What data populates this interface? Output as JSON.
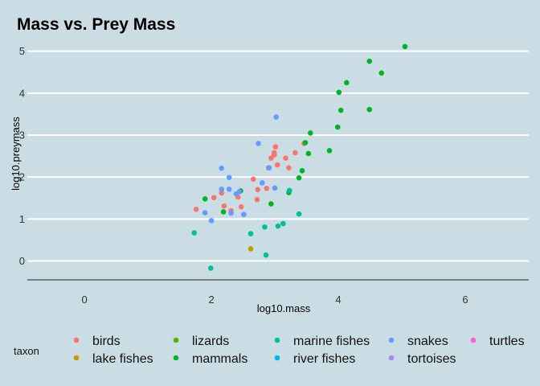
{
  "chart_data": {
    "type": "scatter",
    "title": "Mass vs. Prey Mass",
    "xlabel": "log10.mass",
    "ylabel": "log10.preymass",
    "xlim": [
      -0.9,
      7.0
    ],
    "ylim": [
      -0.45,
      5.3
    ],
    "x_ticks": [
      0,
      2,
      4,
      6
    ],
    "y_ticks": [
      0,
      1,
      2,
      3,
      4,
      5
    ],
    "grid": true,
    "legend_position": "bottom",
    "legend_title": "taxon",
    "series": [
      {
        "name": "birds",
        "color": "#F8766D",
        "points": [
          [
            1.76,
            1.23
          ],
          [
            2.04,
            1.51
          ],
          [
            2.16,
            1.62
          ],
          [
            2.2,
            1.31
          ],
          [
            2.31,
            1.2
          ],
          [
            2.42,
            1.52
          ],
          [
            2.47,
            1.29
          ],
          [
            2.66,
            1.95
          ],
          [
            2.73,
            1.7
          ],
          [
            2.72,
            1.46
          ],
          [
            2.87,
            1.73
          ],
          [
            2.9,
            2.22
          ],
          [
            2.94,
            2.45
          ],
          [
            2.99,
            2.53
          ],
          [
            2.99,
            2.58
          ],
          [
            3.01,
            2.72
          ],
          [
            3.04,
            2.29
          ],
          [
            3.17,
            2.45
          ],
          [
            3.22,
            2.22
          ],
          [
            3.32,
            2.58
          ],
          [
            3.46,
            2.8
          ]
        ]
      },
      {
        "name": "lake fishes",
        "color": "#C49A00",
        "points": [
          [
            2.62,
            0.29
          ]
        ]
      },
      {
        "name": "lizards",
        "color": "#53B400",
        "points": []
      },
      {
        "name": "mammals",
        "color": "#00B327",
        "points": [
          [
            1.9,
            1.48
          ],
          [
            2.19,
            1.17
          ],
          [
            2.46,
            1.67
          ],
          [
            2.94,
            1.36
          ],
          [
            3.22,
            1.63
          ],
          [
            3.38,
            1.98
          ],
          [
            3.43,
            2.15
          ],
          [
            3.48,
            2.82
          ],
          [
            3.53,
            2.56
          ],
          [
            3.56,
            3.05
          ],
          [
            3.86,
            2.63
          ],
          [
            3.99,
            3.19
          ],
          [
            4.01,
            4.02
          ],
          [
            4.04,
            3.59
          ],
          [
            4.13,
            4.25
          ],
          [
            4.49,
            3.61
          ],
          [
            4.49,
            4.76
          ],
          [
            4.68,
            4.48
          ],
          [
            5.05,
            5.11
          ]
        ]
      },
      {
        "name": "marine fishes",
        "color": "#00C094",
        "points": [
          [
            1.73,
            0.67
          ],
          [
            1.99,
            -0.17
          ],
          [
            2.62,
            0.65
          ],
          [
            2.84,
            0.81
          ],
          [
            2.86,
            0.14
          ],
          [
            3.05,
            0.83
          ],
          [
            3.13,
            0.89
          ],
          [
            3.23,
            1.68
          ],
          [
            3.38,
            1.12
          ]
        ]
      },
      {
        "name": "river fishes",
        "color": "#00B6EB",
        "points": []
      },
      {
        "name": "snakes",
        "color": "#619CFF",
        "points": [
          [
            1.9,
            1.15
          ],
          [
            2.0,
            0.96
          ],
          [
            2.16,
            1.71
          ],
          [
            2.16,
            2.21
          ],
          [
            2.28,
            1.99
          ],
          [
            2.28,
            1.71
          ],
          [
            2.31,
            1.14
          ],
          [
            2.39,
            1.6
          ],
          [
            2.44,
            1.65
          ],
          [
            2.51,
            1.11
          ],
          [
            2.74,
            2.8
          ],
          [
            2.8,
            1.86
          ],
          [
            2.91,
            2.22
          ],
          [
            3.0,
            1.74
          ],
          [
            3.02,
            3.43
          ]
        ]
      },
      {
        "name": "tortoises",
        "color": "#A58AFF",
        "points": []
      },
      {
        "name": "turtles",
        "color": "#FB61D7",
        "points": []
      }
    ]
  }
}
